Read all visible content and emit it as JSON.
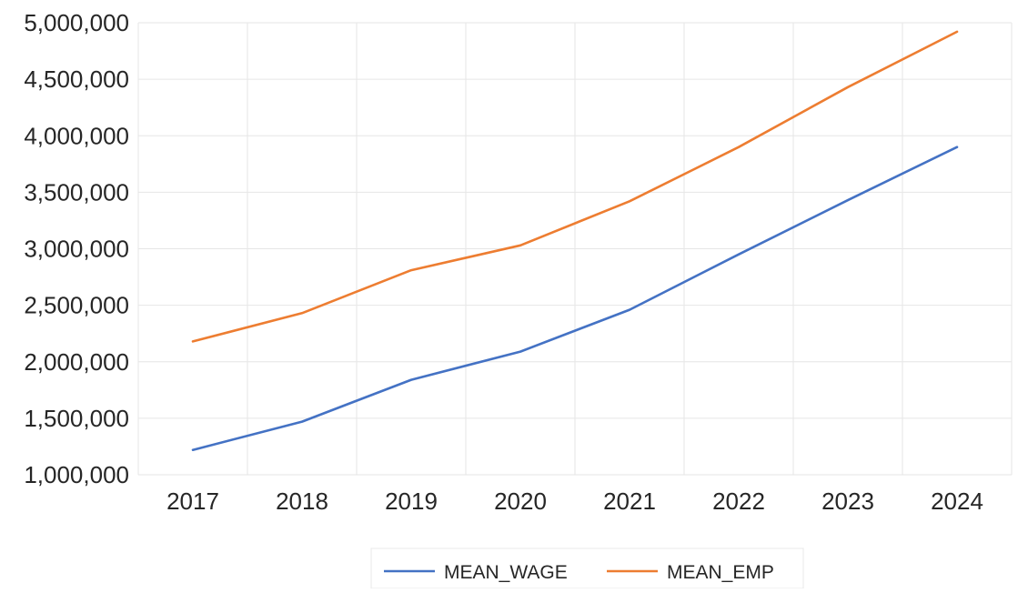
{
  "chart_data": {
    "type": "line",
    "title": "",
    "xlabel": "",
    "ylabel": "",
    "categories": [
      "2017",
      "2018",
      "2019",
      "2020",
      "2021",
      "2022",
      "2023",
      "2024"
    ],
    "ylim": [
      1000000,
      5000000
    ],
    "yticks": [
      1000000,
      1500000,
      2000000,
      2500000,
      3000000,
      3500000,
      4000000,
      4500000,
      5000000
    ],
    "ytick_labels": [
      "1,000,000",
      "1,500,000",
      "2,000,000",
      "2,500,000",
      "3,000,000",
      "3,500,000",
      "4,000,000",
      "4,500,000",
      "5,000,000"
    ],
    "grid": true,
    "legend_position": "bottom",
    "series": [
      {
        "name": "MEAN_WAGE",
        "color": "#4472c4",
        "values": [
          1220000,
          1470000,
          1840000,
          2090000,
          2460000,
          2950000,
          3430000,
          3900000
        ]
      },
      {
        "name": "MEAN_EMP",
        "color": "#ed7d31",
        "values": [
          2180000,
          2430000,
          2810000,
          3030000,
          3420000,
          3900000,
          4430000,
          4920000
        ]
      }
    ]
  }
}
